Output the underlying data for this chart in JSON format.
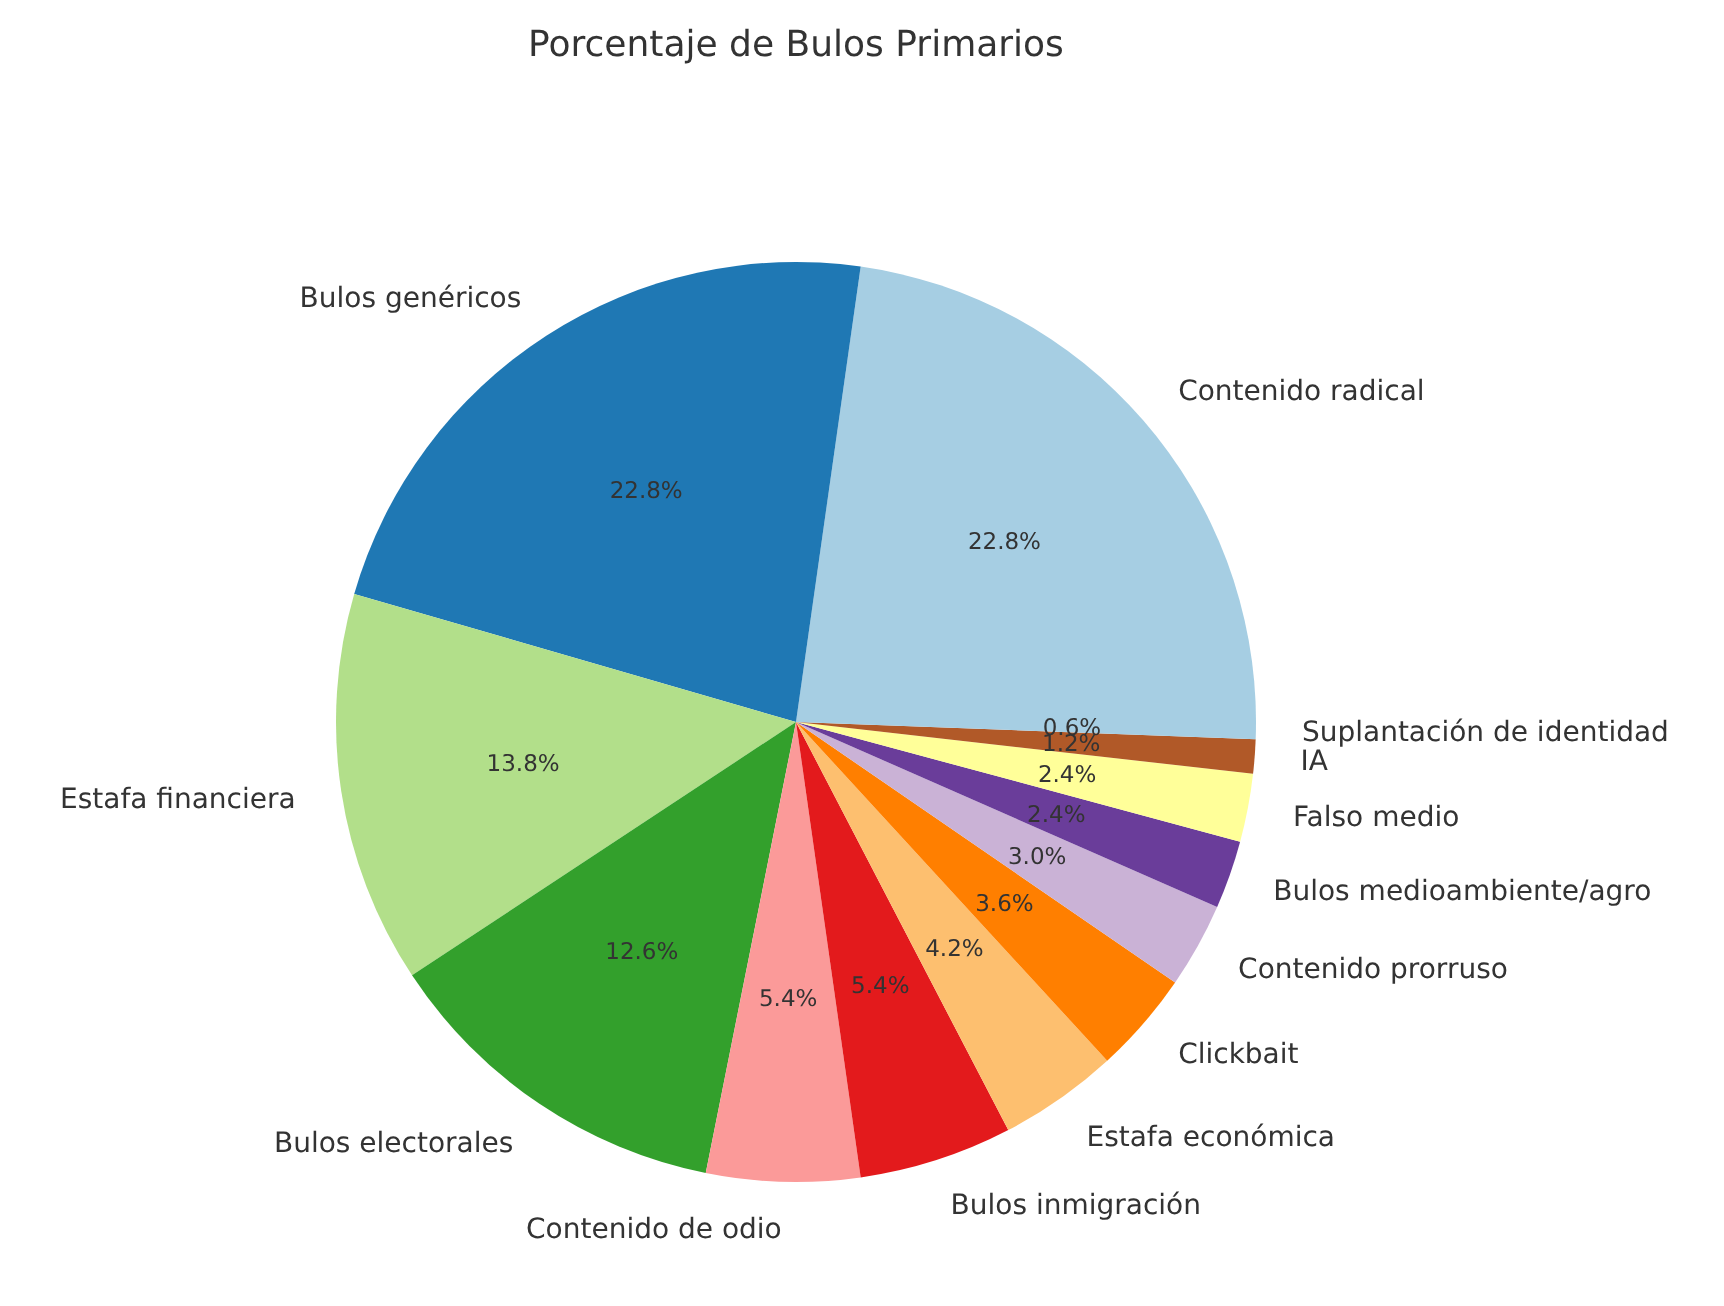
{
  "chart_data": {
    "type": "pie",
    "title": "Porcentaje de Bulos Primarios",
    "categories": [
      "Contenido radical",
      "Bulos genéricos",
      "Estafa financiera",
      "Bulos electorales",
      "Contenido de odio",
      "Bulos inmigración",
      "Estafa económica",
      "Clickbait",
      "Contenido prorruso",
      "Bulos medioambiente/agro",
      "Falso medio",
      "IA",
      "Suplantación de identidad"
    ],
    "values": [
      22.8,
      22.8,
      13.8,
      12.6,
      5.4,
      5.4,
      4.2,
      3.6,
      3.0,
      2.4,
      2.4,
      1.2,
      0.6
    ],
    "value_labels": [
      "22.8%",
      "22.8%",
      "13.8%",
      "12.6%",
      "5.4%",
      "5.4%",
      "4.2%",
      "3.6%",
      "3.0%",
      "2.4%",
      "2.4%",
      "1.2%",
      "0.6%"
    ],
    "colors": [
      "#a6cee3",
      "#1f78b4",
      "#b2df8a",
      "#33a02c",
      "#fb9a99",
      "#e31a1c",
      "#fdbf6f",
      "#ff7f00",
      "#cab2d6",
      "#6a3d9a",
      "#ffff99",
      "#b15928",
      "#a6cee3"
    ]
  }
}
